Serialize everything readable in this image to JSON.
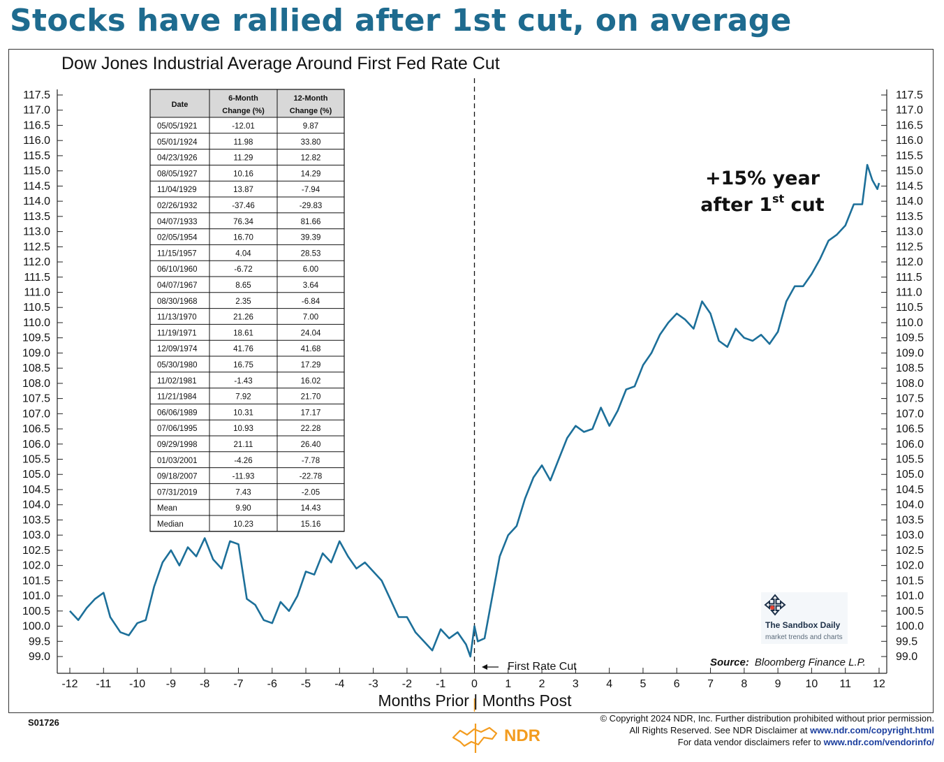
{
  "headline": "Stocks have rallied after 1st cut, on average",
  "chart_data": {
    "type": "line",
    "title": "Dow Jones Industrial Average Around First Fed Rate Cut",
    "xlabel": "Months Prior | Months Post",
    "xlim": [
      -12,
      12
    ],
    "ylim": [
      99.0,
      117.5
    ],
    "x_ticks": [
      "-12",
      "-11",
      "-10",
      "-9",
      "-8",
      "-7",
      "-6",
      "-5",
      "-4",
      "-3",
      "-2",
      "-1",
      "0",
      "1",
      "2",
      "3",
      "4",
      "5",
      "6",
      "7",
      "8",
      "9",
      "10",
      "11",
      "12"
    ],
    "y_ticks": [
      "117.5",
      "117.0",
      "116.5",
      "116.0",
      "115.5",
      "115.0",
      "114.5",
      "114.0",
      "113.5",
      "113.0",
      "112.5",
      "112.0",
      "111.5",
      "111.0",
      "110.5",
      "110.0",
      "109.5",
      "109.0",
      "108.5",
      "108.0",
      "107.5",
      "107.0",
      "106.5",
      "106.0",
      "105.5",
      "105.0",
      "104.5",
      "104.0",
      "103.5",
      "103.0",
      "102.5",
      "102.0",
      "101.5",
      "101.0",
      "100.5",
      "100.0",
      "99.5",
      "99.0"
    ],
    "line_color": "#1c6f99",
    "series": [
      {
        "x": [
          -12.0,
          -11.75,
          -11.5,
          -11.25,
          -11.0,
          -10.8,
          -10.5,
          -10.25,
          -10.0,
          -9.75,
          -9.5,
          -9.25,
          -9.0,
          -8.75,
          -8.5,
          -8.25,
          -8.0,
          -7.75,
          -7.5,
          -7.25,
          -7.0,
          -6.75,
          -6.5,
          -6.25,
          -6.0,
          -5.75,
          -5.5,
          -5.25,
          -5.0,
          -4.75,
          -4.5,
          -4.25,
          -4.0,
          -3.75,
          -3.5,
          -3.25,
          -3.0,
          -2.75,
          -2.5,
          -2.25,
          -2.0,
          -1.75,
          -1.5,
          -1.25,
          -1.0,
          -0.75,
          -0.5,
          -0.25,
          -0.12,
          0.0,
          0.1,
          0.3,
          0.5,
          0.75,
          1.0,
          1.25,
          1.5,
          1.75,
          2.0,
          2.25,
          2.5,
          2.75,
          3.0,
          3.25,
          3.5,
          3.75,
          4.0,
          4.25,
          4.5,
          4.75,
          5.0,
          5.25,
          5.5,
          5.75,
          6.0,
          6.25,
          6.5,
          6.75,
          7.0,
          7.25,
          7.5,
          7.75,
          8.0,
          8.25,
          8.5,
          8.75,
          9.0,
          9.25,
          9.5,
          9.75,
          10.0,
          10.25,
          10.5,
          10.75,
          11.0,
          11.25,
          11.5,
          11.65,
          11.8,
          11.95,
          12.0
        ],
        "y": [
          100.5,
          100.2,
          100.6,
          100.9,
          101.1,
          100.3,
          99.8,
          99.7,
          100.1,
          100.2,
          101.3,
          102.1,
          102.5,
          102.0,
          102.6,
          102.3,
          102.9,
          102.2,
          101.9,
          102.8,
          102.7,
          100.9,
          100.7,
          100.2,
          100.1,
          100.8,
          100.5,
          101.0,
          101.8,
          101.7,
          102.4,
          102.1,
          102.8,
          102.3,
          101.9,
          102.1,
          101.8,
          101.5,
          100.9,
          100.3,
          100.3,
          99.8,
          99.5,
          99.2,
          99.9,
          99.6,
          99.8,
          99.4,
          99.0,
          100.0,
          99.5,
          99.6,
          100.8,
          102.3,
          103.0,
          103.3,
          104.2,
          104.9,
          105.3,
          104.8,
          105.5,
          106.2,
          106.6,
          106.4,
          106.5,
          107.2,
          106.6,
          107.1,
          107.8,
          107.9,
          108.6,
          109.0,
          109.6,
          110.0,
          110.3,
          110.1,
          109.8,
          110.7,
          110.3,
          109.4,
          109.2,
          109.8,
          109.5,
          109.4,
          109.6,
          109.3,
          109.7,
          110.7,
          111.2,
          111.2,
          111.6,
          112.1,
          112.7,
          112.9,
          113.2,
          113.9,
          113.9,
          115.2,
          114.7,
          114.4,
          114.6
        ]
      }
    ],
    "cut_marker_label": "First Rate Cut",
    "annotation_line1": "+15% year",
    "annotation_line2_pre": "after 1",
    "annotation_line2_sup": "st",
    "annotation_line2_post": " cut",
    "source_label": "Source:",
    "source_text": "Bloomberg Finance L.P."
  },
  "table": {
    "headers": [
      "Date",
      "6-Month",
      "Change (%)",
      "12-Month",
      "Change (%)"
    ],
    "rows": [
      [
        "05/05/1921",
        "-12.01",
        "9.87"
      ],
      [
        "05/01/1924",
        "11.98",
        "33.80"
      ],
      [
        "04/23/1926",
        "11.29",
        "12.82"
      ],
      [
        "08/05/1927",
        "10.16",
        "14.29"
      ],
      [
        "11/04/1929",
        "13.87",
        "-7.94"
      ],
      [
        "02/26/1932",
        "-37.46",
        "-29.83"
      ],
      [
        "04/07/1933",
        "76.34",
        "81.66"
      ],
      [
        "02/05/1954",
        "16.70",
        "39.39"
      ],
      [
        "11/15/1957",
        "4.04",
        "28.53"
      ],
      [
        "06/10/1960",
        "-6.72",
        "6.00"
      ],
      [
        "04/07/1967",
        "8.65",
        "3.64"
      ],
      [
        "08/30/1968",
        "2.35",
        "-6.84"
      ],
      [
        "11/13/1970",
        "21.26",
        "7.00"
      ],
      [
        "11/19/1971",
        "18.61",
        "24.04"
      ],
      [
        "12/09/1974",
        "41.76",
        "41.68"
      ],
      [
        "05/30/1980",
        "16.75",
        "17.29"
      ],
      [
        "11/02/1981",
        "-1.43",
        "16.02"
      ],
      [
        "11/21/1984",
        "7.92",
        "21.70"
      ],
      [
        "06/06/1989",
        "10.31",
        "17.17"
      ],
      [
        "07/06/1995",
        "10.93",
        "22.28"
      ],
      [
        "09/29/1998",
        "21.11",
        "26.40"
      ],
      [
        "01/03/2001",
        "-4.26",
        "-7.78"
      ],
      [
        "09/18/2007",
        "-11.93",
        "-22.78"
      ],
      [
        "07/31/2019",
        "7.43",
        "-2.05"
      ],
      [
        "Mean",
        "9.90",
        "14.43"
      ],
      [
        "Median",
        "10.23",
        "15.16"
      ]
    ]
  },
  "footer": {
    "code": "S01726",
    "copyright_line1": "© Copyright 2024 NDR, Inc. Further distribution prohibited without prior permission.",
    "copyright_line2_pre": "All Rights Reserved. See NDR Disclaimer at ",
    "copyright_line2_link": "www.ndr.com/copyright.html",
    "copyright_line3_pre": "For data vendor disclaimers refer to ",
    "copyright_line3_link": "www.ndr.com/vendorinfo/",
    "logo_text": "NDR"
  },
  "watermark": {
    "title": "The Sandbox Daily",
    "subtitle": "market trends and charts"
  }
}
